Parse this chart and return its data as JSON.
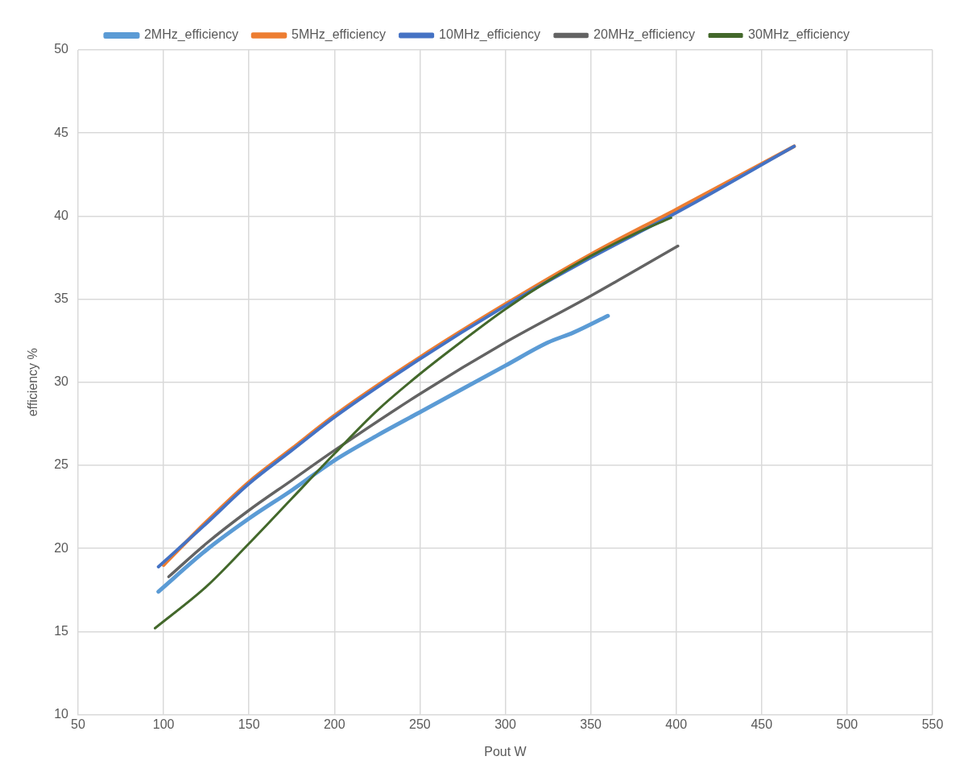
{
  "chart_data": {
    "type": "line",
    "xlabel": "Pout W",
    "ylabel": "efficiency %",
    "xlim": [
      50,
      550
    ],
    "xticks": [
      50,
      100,
      150,
      200,
      250,
      300,
      350,
      400,
      450,
      500,
      550
    ],
    "ylim": [
      10,
      50
    ],
    "yticks": [
      10,
      15,
      20,
      25,
      30,
      35,
      40,
      45,
      50
    ],
    "grid": true,
    "legend": "top",
    "marker": "none",
    "line_style": "solid",
    "series": [
      {
        "name": "2MHz_efficiency",
        "color": "#5b9bd5",
        "x": [
          97,
          125,
          150,
          175,
          200,
          225,
          250,
          275,
          300,
          325,
          340,
          360
        ],
        "values": [
          17.4,
          19.9,
          21.8,
          23.5,
          25.3,
          26.8,
          28.2,
          29.6,
          31.0,
          32.4,
          33.0,
          34.0
        ]
      },
      {
        "name": "5MHz_efficiency",
        "color": "#ed7d31",
        "x": [
          100,
          125,
          150,
          175,
          200,
          250,
          300,
          350,
          400,
          469
        ],
        "values": [
          19.0,
          21.6,
          24.0,
          26.0,
          28.0,
          31.5,
          34.7,
          37.7,
          40.4,
          44.2
        ]
      },
      {
        "name": "10MHz_efficiency",
        "color": "#4472c4",
        "x": [
          97,
          125,
          150,
          175,
          200,
          250,
          300,
          350,
          400,
          469
        ],
        "values": [
          18.9,
          21.5,
          23.9,
          25.9,
          27.9,
          31.4,
          34.6,
          37.5,
          40.2,
          44.2
        ]
      },
      {
        "name": "20MHz_efficiency",
        "color": "#636363",
        "x": [
          103,
          125,
          150,
          175,
          200,
          250,
          300,
          350,
          401
        ],
        "values": [
          18.3,
          20.3,
          22.3,
          24.1,
          25.9,
          29.3,
          32.4,
          35.2,
          38.2
        ]
      },
      {
        "name": "30MHz_efficiency",
        "color": "#43682b",
        "x": [
          95,
          125,
          150,
          175,
          200,
          225,
          250,
          275,
          300,
          325,
          350,
          375,
          397
        ],
        "values": [
          15.2,
          17.7,
          20.3,
          23.0,
          25.7,
          28.3,
          30.5,
          32.5,
          34.4,
          36.1,
          37.6,
          38.9,
          39.9
        ]
      }
    ]
  }
}
